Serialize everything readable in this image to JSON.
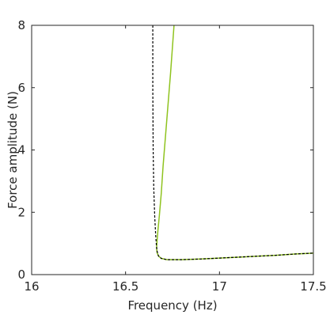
{
  "chart_data": {
    "type": "line",
    "title": "",
    "xlabel": "Frequency (Hz)",
    "ylabel": "Force amplitude (N)",
    "xlim": [
      16,
      17.5
    ],
    "ylim": [
      0,
      8
    ],
    "xticks": [
      16,
      16.5,
      17,
      17.5
    ],
    "xtick_labels": [
      "16",
      "16.5",
      "17",
      "17.5"
    ],
    "yticks": [
      0,
      2,
      4,
      6,
      8
    ],
    "ytick_labels": [
      "0",
      "2",
      "4",
      "6",
      "8"
    ],
    "grid": false,
    "legend": "none",
    "series": [
      {
        "color": "#8fc31f",
        "style": "solid",
        "x": [
          16.758,
          16.74,
          16.72,
          16.7,
          16.69,
          16.68,
          16.672,
          16.668,
          16.665,
          16.668,
          16.675,
          16.69,
          16.72,
          16.8,
          16.9,
          17.0,
          17.1,
          17.2,
          17.3,
          17.4,
          17.5
        ],
        "y": [
          8.0,
          6.5,
          5.0,
          3.5,
          2.6,
          1.9,
          1.4,
          1.1,
          0.85,
          0.7,
          0.6,
          0.52,
          0.48,
          0.48,
          0.5,
          0.53,
          0.56,
          0.59,
          0.62,
          0.66,
          0.69
        ]
      },
      {
        "color": "#000000",
        "style": "dashed",
        "x": [
          16.645,
          16.645,
          16.647,
          16.65,
          16.655,
          16.66,
          16.664,
          16.668,
          16.675,
          16.69,
          16.72,
          16.8,
          16.9,
          17.0,
          17.1,
          17.2,
          17.3,
          17.4,
          17.5
        ],
        "y": [
          8.0,
          6.0,
          4.0,
          2.8,
          1.9,
          1.3,
          0.95,
          0.75,
          0.6,
          0.52,
          0.48,
          0.48,
          0.5,
          0.53,
          0.56,
          0.59,
          0.62,
          0.66,
          0.69
        ]
      }
    ]
  }
}
